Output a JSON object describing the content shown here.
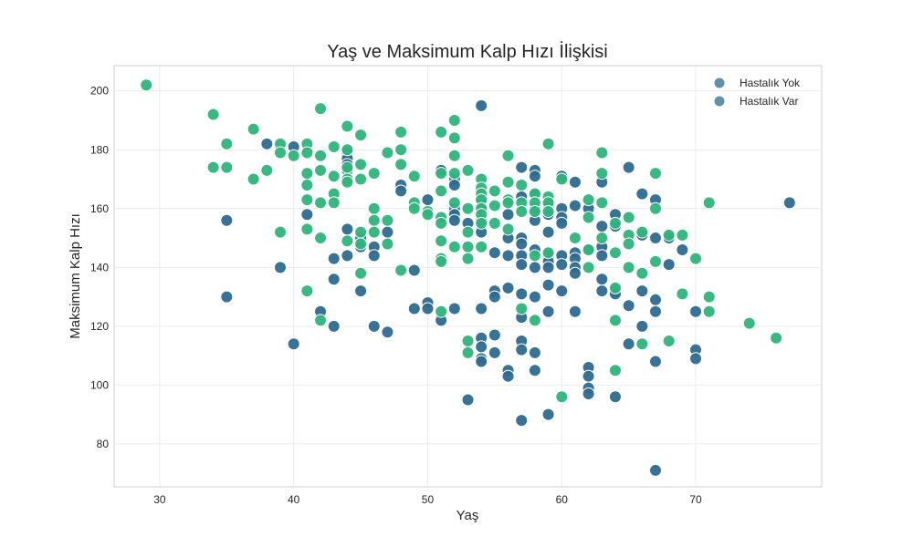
{
  "chart_data": {
    "type": "scatter",
    "title": "Yaş ve Maksimum Kalp Hızı İlişkisi",
    "xlabel": "Yaş",
    "ylabel": "Maksimum Kalp Hızı",
    "xlim": [
      26.6,
      79.4
    ],
    "ylim": [
      65.4,
      208.6
    ],
    "xticks": [
      30,
      40,
      50,
      60,
      70
    ],
    "yticks": [
      80,
      100,
      120,
      140,
      160,
      180,
      200
    ],
    "grid": true,
    "legend": {
      "position": "top-right"
    },
    "series": [
      {
        "name": "Hastalık Yok",
        "color": "#2d6a8e",
        "points": [
          [
            35,
            156
          ],
          [
            35,
            130
          ],
          [
            38,
            182
          ],
          [
            39,
            140
          ],
          [
            40,
            181
          ],
          [
            40,
            114
          ],
          [
            41,
            158
          ],
          [
            42,
            125
          ],
          [
            43,
            143
          ],
          [
            43,
            136
          ],
          [
            43,
            120
          ],
          [
            44,
            179
          ],
          [
            44,
            177
          ],
          [
            44,
            175
          ],
          [
            44,
            173
          ],
          [
            44,
            153
          ],
          [
            44,
            144
          ],
          [
            45,
            150
          ],
          [
            45,
            147
          ],
          [
            45,
            132
          ],
          [
            46,
            147
          ],
          [
            46,
            144
          ],
          [
            46,
            120
          ],
          [
            47,
            152
          ],
          [
            47,
            118
          ],
          [
            48,
            168
          ],
          [
            48,
            166
          ],
          [
            49,
            139
          ],
          [
            49,
            126
          ],
          [
            50,
            163
          ],
          [
            50,
            128
          ],
          [
            50,
            126
          ],
          [
            51,
            173
          ],
          [
            51,
            122
          ],
          [
            52,
            170
          ],
          [
            52,
            168
          ],
          [
            52,
            160
          ],
          [
            52,
            158
          ],
          [
            52,
            156
          ],
          [
            52,
            126
          ],
          [
            53,
            155
          ],
          [
            53,
            95
          ],
          [
            54,
            195
          ],
          [
            54,
            163
          ],
          [
            54,
            160
          ],
          [
            54,
            156
          ],
          [
            54,
            152
          ],
          [
            54,
            126
          ],
          [
            54,
            116
          ],
          [
            54,
            113
          ],
          [
            54,
            109
          ],
          [
            54,
            108
          ],
          [
            55,
            145
          ],
          [
            55,
            132
          ],
          [
            55,
            130
          ],
          [
            55,
            117
          ],
          [
            55,
            111
          ],
          [
            56,
            158
          ],
          [
            56,
            150
          ],
          [
            56,
            144
          ],
          [
            56,
            133
          ],
          [
            56,
            105
          ],
          [
            56,
            103
          ],
          [
            57,
            174
          ],
          [
            57,
            164
          ],
          [
            57,
            150
          ],
          [
            57,
            148
          ],
          [
            57,
            144
          ],
          [
            57,
            141
          ],
          [
            57,
            131
          ],
          [
            57,
            123
          ],
          [
            57,
            115
          ],
          [
            57,
            112
          ],
          [
            57,
            88
          ],
          [
            58,
            173
          ],
          [
            58,
            171
          ],
          [
            58,
            165
          ],
          [
            58,
            160
          ],
          [
            58,
            156
          ],
          [
            58,
            146
          ],
          [
            58,
            140
          ],
          [
            58,
            130
          ],
          [
            58,
            111
          ],
          [
            58,
            105
          ],
          [
            59,
            161
          ],
          [
            59,
            158
          ],
          [
            59,
            152
          ],
          [
            59,
            144
          ],
          [
            59,
            142
          ],
          [
            59,
            140
          ],
          [
            59,
            134
          ],
          [
            59,
            125
          ],
          [
            59,
            90
          ],
          [
            60,
            171
          ],
          [
            60,
            160
          ],
          [
            60,
            157
          ],
          [
            60,
            155
          ],
          [
            60,
            144
          ],
          [
            60,
            141
          ],
          [
            60,
            132
          ],
          [
            61,
            169
          ],
          [
            61,
            161
          ],
          [
            61,
            145
          ],
          [
            61,
            143
          ],
          [
            61,
            140
          ],
          [
            61,
            138
          ],
          [
            61,
            125
          ],
          [
            62,
            160
          ],
          [
            62,
            146
          ],
          [
            62,
            106
          ],
          [
            62,
            103
          ],
          [
            62,
            99
          ],
          [
            62,
            97
          ],
          [
            63,
            169
          ],
          [
            63,
            154
          ],
          [
            63,
            147
          ],
          [
            63,
            144
          ],
          [
            63,
            136
          ],
          [
            63,
            132
          ],
          [
            64,
            158
          ],
          [
            64,
            154
          ],
          [
            64,
            132
          ],
          [
            64,
            131
          ],
          [
            64,
            96
          ],
          [
            65,
            174
          ],
          [
            65,
            127
          ],
          [
            65,
            114
          ],
          [
            66,
            165
          ],
          [
            66,
            151
          ],
          [
            66,
            132
          ],
          [
            66,
            120
          ],
          [
            67,
            163
          ],
          [
            67,
            150
          ],
          [
            67,
            129
          ],
          [
            67,
            125
          ],
          [
            67,
            108
          ],
          [
            67,
            71
          ],
          [
            68,
            150
          ],
          [
            68,
            141
          ],
          [
            69,
            146
          ],
          [
            70,
            125
          ],
          [
            70,
            112
          ],
          [
            70,
            109
          ],
          [
            77,
            162
          ]
        ]
      },
      {
        "name": "Hastalık Var",
        "color": "#2fb47c",
        "points": [
          [
            29,
            202
          ],
          [
            34,
            192
          ],
          [
            34,
            174
          ],
          [
            35,
            182
          ],
          [
            35,
            174
          ],
          [
            37,
            187
          ],
          [
            37,
            170
          ],
          [
            38,
            173
          ],
          [
            39,
            182
          ],
          [
            39,
            179
          ],
          [
            39,
            152
          ],
          [
            40,
            178
          ],
          [
            41,
            182
          ],
          [
            41,
            179
          ],
          [
            41,
            172
          ],
          [
            41,
            168
          ],
          [
            41,
            163
          ],
          [
            41,
            153
          ],
          [
            41,
            132
          ],
          [
            42,
            194
          ],
          [
            42,
            178
          ],
          [
            42,
            173
          ],
          [
            42,
            162
          ],
          [
            42,
            150
          ],
          [
            42,
            122
          ],
          [
            43,
            181
          ],
          [
            43,
            171
          ],
          [
            43,
            165
          ],
          [
            43,
            162
          ],
          [
            44,
            188
          ],
          [
            44,
            180
          ],
          [
            44,
            174
          ],
          [
            44,
            170
          ],
          [
            44,
            169
          ],
          [
            44,
            149
          ],
          [
            45,
            185
          ],
          [
            45,
            175
          ],
          [
            45,
            170
          ],
          [
            45,
            152
          ],
          [
            45,
            148
          ],
          [
            45,
            138
          ],
          [
            46,
            172
          ],
          [
            46,
            160
          ],
          [
            46,
            156
          ],
          [
            46,
            152
          ],
          [
            47,
            179
          ],
          [
            47,
            156
          ],
          [
            47,
            148
          ],
          [
            48,
            186
          ],
          [
            48,
            180
          ],
          [
            48,
            175
          ],
          [
            48,
            139
          ],
          [
            49,
            171
          ],
          [
            49,
            162
          ],
          [
            49,
            160
          ],
          [
            50,
            159
          ],
          [
            50,
            158
          ],
          [
            51,
            186
          ],
          [
            51,
            172
          ],
          [
            51,
            166
          ],
          [
            51,
            157
          ],
          [
            51,
            155
          ],
          [
            51,
            149
          ],
          [
            51,
            143
          ],
          [
            51,
            142
          ],
          [
            51,
            125
          ],
          [
            52,
            190
          ],
          [
            52,
            184
          ],
          [
            52,
            178
          ],
          [
            52,
            172
          ],
          [
            52,
            162
          ],
          [
            52,
            147
          ],
          [
            53,
            173
          ],
          [
            53,
            160
          ],
          [
            53,
            152
          ],
          [
            53,
            147
          ],
          [
            53,
            143
          ],
          [
            53,
            115
          ],
          [
            53,
            111
          ],
          [
            54,
            170
          ],
          [
            54,
            167
          ],
          [
            54,
            165
          ],
          [
            54,
            163
          ],
          [
            54,
            160
          ],
          [
            54,
            158
          ],
          [
            54,
            155
          ],
          [
            54,
            147
          ],
          [
            55,
            166
          ],
          [
            55,
            161
          ],
          [
            55,
            155
          ],
          [
            56,
            178
          ],
          [
            56,
            169
          ],
          [
            56,
            163
          ],
          [
            56,
            162
          ],
          [
            56,
            153
          ],
          [
            57,
            168
          ],
          [
            57,
            162
          ],
          [
            57,
            159
          ],
          [
            57,
            126
          ],
          [
            58,
            165
          ],
          [
            58,
            162
          ],
          [
            58,
            159
          ],
          [
            58,
            144
          ],
          [
            58,
            122
          ],
          [
            59,
            182
          ],
          [
            59,
            164
          ],
          [
            59,
            162
          ],
          [
            59,
            159
          ],
          [
            59,
            145
          ],
          [
            60,
            170
          ],
          [
            60,
            96
          ],
          [
            61,
            150
          ],
          [
            62,
            163
          ],
          [
            62,
            157
          ],
          [
            62,
            146
          ],
          [
            62,
            140
          ],
          [
            63,
            179
          ],
          [
            63,
            172
          ],
          [
            63,
            162
          ],
          [
            63,
            150
          ],
          [
            64,
            155
          ],
          [
            64,
            145
          ],
          [
            64,
            133
          ],
          [
            64,
            122
          ],
          [
            64,
            105
          ],
          [
            65,
            157
          ],
          [
            65,
            151
          ],
          [
            65,
            148
          ],
          [
            65,
            140
          ],
          [
            66,
            152
          ],
          [
            66,
            138
          ],
          [
            66,
            114
          ],
          [
            67,
            172
          ],
          [
            67,
            160
          ],
          [
            67,
            142
          ],
          [
            68,
            151
          ],
          [
            68,
            115
          ],
          [
            69,
            151
          ],
          [
            69,
            131
          ],
          [
            70,
            143
          ],
          [
            71,
            162
          ],
          [
            71,
            130
          ],
          [
            71,
            125
          ],
          [
            74,
            121
          ],
          [
            76,
            116
          ]
        ]
      }
    ]
  }
}
